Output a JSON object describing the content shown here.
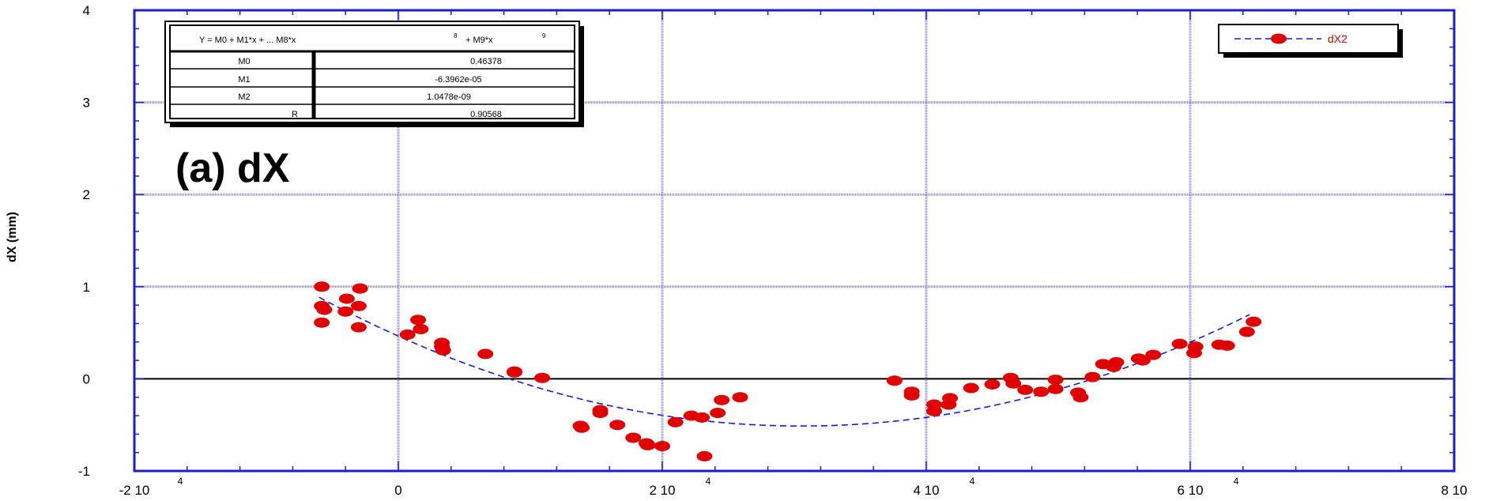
{
  "chart_data": {
    "type": "scatter",
    "title": "",
    "panel_label": "(a) dX",
    "xlabel": "",
    "ylabel": "dX (mm)",
    "xlim": [
      -20000,
      80000
    ],
    "ylim": [
      -1,
      4
    ],
    "x_ticks": [
      {
        "value": -20000,
        "base": "-2 10",
        "exp": "4"
      },
      {
        "value": 0,
        "base": "0",
        "exp": ""
      },
      {
        "value": 20000,
        "base": "2 10",
        "exp": "4"
      },
      {
        "value": 40000,
        "base": "4 10",
        "exp": "4"
      },
      {
        "value": 60000,
        "base": "6 10",
        "exp": "4"
      },
      {
        "value": 80000,
        "base": "8 10",
        "exp": "4"
      }
    ],
    "y_ticks": [
      -1,
      0,
      1,
      2,
      3,
      4
    ],
    "grid": true,
    "legend": {
      "position": "top-right",
      "entries": [
        {
          "label": "dX2",
          "color": "#e00000"
        }
      ]
    },
    "fit_table": {
      "equation_parts": [
        "Y = M0 + M1*x + ... M8*x",
        "8",
        "+ M9*x",
        "9"
      ],
      "rows": [
        {
          "name": "M0",
          "value": "0.46378"
        },
        {
          "name": "M1",
          "value": "-6.3962e-05"
        },
        {
          "name": "M2",
          "value": "1.0478e-09"
        },
        {
          "name": "R",
          "value": "0.90568"
        }
      ]
    },
    "fit_coefficients": {
      "M0": 0.46378,
      "M1": -6.3962e-05,
      "M2": 1.0478e-09
    },
    "fit_range": [
      -6000,
      64500
    ],
    "series": [
      {
        "name": "dX2",
        "color": "#e00000",
        "points": [
          [
            -5800,
            1.0
          ],
          [
            -5800,
            0.79
          ],
          [
            -5600,
            0.75
          ],
          [
            -5800,
            0.61
          ],
          [
            -3900,
            0.87
          ],
          [
            -4000,
            0.73
          ],
          [
            -2900,
            0.98
          ],
          [
            -3000,
            0.79
          ],
          [
            -3000,
            0.56
          ],
          [
            700,
            0.48
          ],
          [
            1500,
            0.64
          ],
          [
            1700,
            0.54
          ],
          [
            3300,
            0.39
          ],
          [
            3300,
            0.35
          ],
          [
            3400,
            0.31
          ],
          [
            6600,
            0.27
          ],
          [
            8800,
            0.07
          ],
          [
            8800,
            0.08
          ],
          [
            10900,
            0.01
          ],
          [
            13800,
            -0.51
          ],
          [
            13900,
            -0.53
          ],
          [
            15300,
            -0.34
          ],
          [
            15300,
            -0.37
          ],
          [
            16600,
            -0.5
          ],
          [
            17800,
            -0.64
          ],
          [
            18800,
            -0.7
          ],
          [
            18900,
            -0.72
          ],
          [
            20000,
            -0.73
          ],
          [
            21000,
            -0.47
          ],
          [
            22200,
            -0.4
          ],
          [
            23000,
            -0.42
          ],
          [
            23200,
            -0.84
          ],
          [
            24200,
            -0.37
          ],
          [
            24500,
            -0.23
          ],
          [
            25900,
            -0.2
          ],
          [
            37600,
            -0.02
          ],
          [
            38900,
            -0.14
          ],
          [
            38900,
            -0.18
          ],
          [
            40600,
            -0.28
          ],
          [
            40600,
            -0.35
          ],
          [
            41800,
            -0.21
          ],
          [
            41700,
            -0.28
          ],
          [
            43400,
            -0.1
          ],
          [
            45000,
            -0.06
          ],
          [
            46400,
            0.01
          ],
          [
            46600,
            -0.05
          ],
          [
            47500,
            -0.12
          ],
          [
            48700,
            -0.14
          ],
          [
            49800,
            -0.11
          ],
          [
            49800,
            -0.01
          ],
          [
            51500,
            -0.15
          ],
          [
            51700,
            -0.2
          ],
          [
            52600,
            0.02
          ],
          [
            53400,
            0.16
          ],
          [
            54400,
            0.18
          ],
          [
            54200,
            0.13
          ],
          [
            56100,
            0.22
          ],
          [
            56400,
            0.2
          ],
          [
            57200,
            0.26
          ],
          [
            59200,
            0.38
          ],
          [
            60300,
            0.28
          ],
          [
            60400,
            0.35
          ],
          [
            62200,
            0.37
          ],
          [
            62800,
            0.36
          ],
          [
            64300,
            0.51
          ],
          [
            64800,
            0.62
          ]
        ]
      }
    ]
  }
}
